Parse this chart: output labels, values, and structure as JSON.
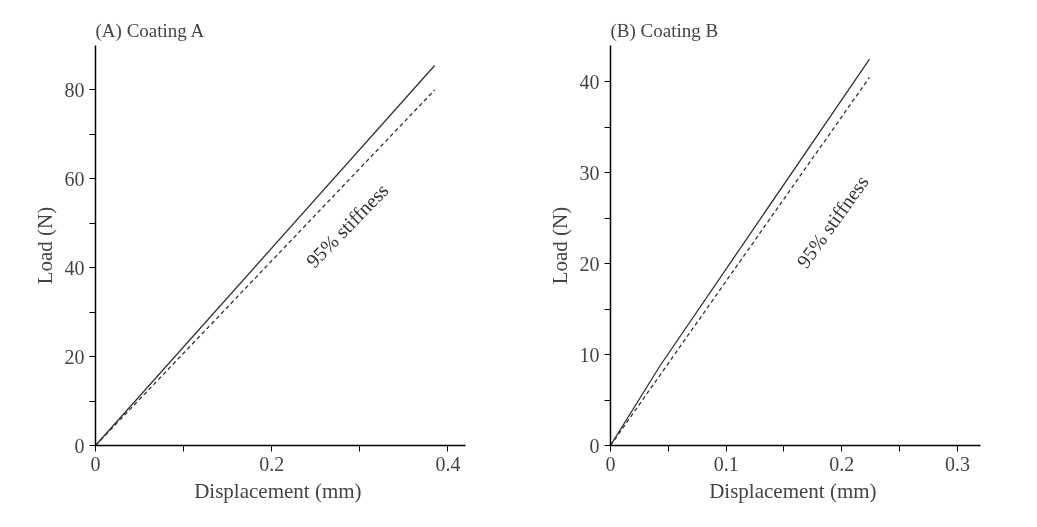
{
  "chart_data": [
    {
      "type": "line",
      "title": "(A) Coating  A",
      "xlabel": "Displacement  (mm)",
      "ylabel": "Load (N)",
      "xlim": [
        0,
        0.42
      ],
      "ylim": [
        0,
        90
      ],
      "xticks": [
        0,
        {
          "value": 0.1,
          "label": null
        },
        0.2,
        {
          "value": 0.3,
          "label": null
        },
        0.4
      ],
      "yticks": [
        0,
        {
          "value": 10,
          "label": null
        },
        20,
        {
          "value": 30,
          "label": null
        },
        40,
        {
          "value": 50,
          "label": null
        },
        60,
        {
          "value": 70,
          "label": null
        },
        80
      ],
      "grid": false,
      "series": [
        {
          "color": "#333333",
          "line_style": "solid",
          "x": [
            0,
            0.385
          ],
          "values": [
            0,
            85.5
          ]
        },
        {
          "color": "#333333",
          "line_style": "dashed",
          "x": [
            0,
            0.385
          ],
          "values": [
            0,
            80
          ]
        }
      ],
      "annotations": [
        "95% stiffness"
      ]
    },
    {
      "type": "line",
      "title": "(B) Coating  B",
      "xlabel": "Displacement  (mm)",
      "ylabel": "Load (N)",
      "xlim": [
        0,
        0.32
      ],
      "ylim": [
        0,
        44
      ],
      "xticks": [
        0,
        {
          "value": 0.05,
          "label": null
        },
        0.1,
        {
          "value": 0.15,
          "label": null
        },
        0.2,
        {
          "value": 0.25,
          "label": null
        },
        0.3
      ],
      "yticks": [
        0,
        {
          "value": 5,
          "label": null
        },
        10,
        {
          "value": 15,
          "label": null
        },
        20,
        {
          "value": 25,
          "label": null
        },
        30,
        {
          "value": 35,
          "label": null
        },
        40
      ],
      "grid": false,
      "series": [
        {
          "color": "#333333",
          "line_style": "solid",
          "x": [
            0,
            0.043,
            0.224
          ],
          "values": [
            0,
            8.8,
            42.5
          ]
        },
        {
          "color": "#333333",
          "line_style": "dashed",
          "x": [
            0,
            0.224
          ],
          "values": [
            0,
            40.5
          ]
        }
      ],
      "annotations": [
        "95% stiffness"
      ]
    }
  ]
}
